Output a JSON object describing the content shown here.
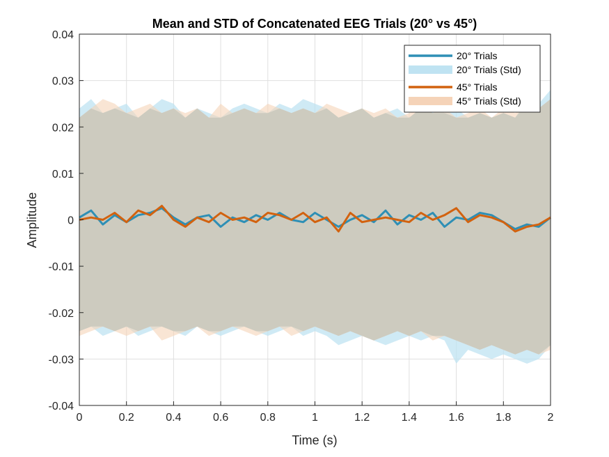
{
  "chart_data": {
    "type": "line",
    "title": "Mean and STD of Concatenated EEG Trials (20° vs 45°)",
    "xlabel": "Time (s)",
    "ylabel": "Amplitude",
    "xlim": [
      0,
      2
    ],
    "ylim": [
      -0.04,
      0.04
    ],
    "xticks": [
      0,
      0.2,
      0.4,
      0.6,
      0.8,
      1,
      1.2,
      1.4,
      1.6,
      1.8,
      2
    ],
    "xtick_labels": [
      "0",
      "0.2",
      "0.4",
      "0.6",
      "0.8",
      "1",
      "1.2",
      "1.4",
      "1.6",
      "1.8",
      "2"
    ],
    "yticks": [
      -0.04,
      -0.03,
      -0.02,
      -0.01,
      0,
      0.01,
      0.02,
      0.03,
      0.04
    ],
    "ytick_labels": [
      "-0.04",
      "-0.03",
      "-0.02",
      "-0.01",
      "0",
      "0.01",
      "0.02",
      "0.03",
      "0.04"
    ],
    "grid": true,
    "legend_position": "top-right",
    "x": [
      0,
      0.05,
      0.1,
      0.15,
      0.2,
      0.25,
      0.3,
      0.35,
      0.4,
      0.45,
      0.5,
      0.55,
      0.6,
      0.65,
      0.7,
      0.75,
      0.8,
      0.85,
      0.9,
      0.95,
      1.0,
      1.05,
      1.1,
      1.15,
      1.2,
      1.25,
      1.3,
      1.35,
      1.4,
      1.45,
      1.5,
      1.55,
      1.6,
      1.65,
      1.7,
      1.75,
      1.8,
      1.85,
      1.9,
      1.95,
      2.0
    ],
    "series": [
      {
        "name": "20° Trials",
        "color": "#2E8FB5",
        "values": [
          0.0005,
          0.002,
          -0.001,
          0.001,
          -0.0005,
          0.001,
          0.0015,
          0.0025,
          0.0005,
          -0.001,
          0.0005,
          0.001,
          -0.0015,
          0.0005,
          -0.0005,
          0.001,
          0.0,
          0.0015,
          0.0,
          -0.0005,
          0.0015,
          0.0,
          -0.0015,
          0.0,
          0.001,
          -0.0005,
          0.002,
          -0.001,
          0.001,
          0.0,
          0.0015,
          -0.0015,
          0.0005,
          0.0,
          0.0015,
          0.001,
          -0.0005,
          -0.002,
          -0.001,
          -0.0015,
          0.0005
        ]
      },
      {
        "name": "20° Trials (Std)",
        "color": "#BFE3F2",
        "upper": [
          0.024,
          0.026,
          0.023,
          0.024,
          0.025,
          0.022,
          0.024,
          0.026,
          0.025,
          0.022,
          0.024,
          0.023,
          0.022,
          0.024,
          0.025,
          0.024,
          0.023,
          0.025,
          0.024,
          0.026,
          0.025,
          0.024,
          0.022,
          0.023,
          0.024,
          0.022,
          0.023,
          0.024,
          0.022,
          0.024,
          0.025,
          0.023,
          0.024,
          0.022,
          0.023,
          0.022,
          0.023,
          0.022,
          0.026,
          0.025,
          0.028
        ],
        "lower": [
          -0.024,
          -0.023,
          -0.025,
          -0.024,
          -0.023,
          -0.025,
          -0.024,
          -0.023,
          -0.024,
          -0.025,
          -0.023,
          -0.024,
          -0.025,
          -0.024,
          -0.023,
          -0.024,
          -0.025,
          -0.024,
          -0.023,
          -0.025,
          -0.024,
          -0.025,
          -0.027,
          -0.026,
          -0.025,
          -0.026,
          -0.027,
          -0.026,
          -0.025,
          -0.026,
          -0.025,
          -0.026,
          -0.031,
          -0.028,
          -0.029,
          -0.03,
          -0.029,
          -0.03,
          -0.031,
          -0.03,
          -0.027
        ]
      },
      {
        "name": "45° Trials",
        "color": "#D2620F",
        "values": [
          0.0,
          0.0005,
          0.0,
          0.0015,
          -0.0005,
          0.002,
          0.001,
          0.003,
          0.0,
          -0.0015,
          0.0005,
          -0.0005,
          0.0015,
          0.0,
          0.0005,
          -0.0005,
          0.0015,
          0.001,
          0.0,
          0.0015,
          -0.0005,
          0.0005,
          -0.0025,
          0.0015,
          -0.0005,
          0.0,
          0.0005,
          0.0,
          -0.0005,
          0.0015,
          0.0,
          0.001,
          0.0025,
          -0.0005,
          0.001,
          0.0005,
          -0.0005,
          -0.0025,
          -0.0015,
          -0.001,
          0.0005
        ]
      },
      {
        "name": "45° Trials (Std)",
        "color": "#F5D3B8",
        "upper": [
          0.022,
          0.024,
          0.026,
          0.025,
          0.023,
          0.024,
          0.025,
          0.023,
          0.024,
          0.023,
          0.024,
          0.022,
          0.025,
          0.023,
          0.024,
          0.023,
          0.025,
          0.024,
          0.023,
          0.024,
          0.023,
          0.025,
          0.024,
          0.023,
          0.024,
          0.023,
          0.024,
          0.022,
          0.023,
          0.024,
          0.023,
          0.024,
          0.022,
          0.023,
          0.024,
          0.022,
          0.024,
          0.023,
          0.025,
          0.024,
          0.026
        ],
        "lower": [
          -0.025,
          -0.024,
          -0.023,
          -0.024,
          -0.025,
          -0.024,
          -0.023,
          -0.026,
          -0.025,
          -0.024,
          -0.023,
          -0.025,
          -0.024,
          -0.023,
          -0.024,
          -0.025,
          -0.024,
          -0.023,
          -0.025,
          -0.024,
          -0.023,
          -0.024,
          -0.025,
          -0.024,
          -0.025,
          -0.026,
          -0.025,
          -0.024,
          -0.025,
          -0.024,
          -0.026,
          -0.025,
          -0.026,
          -0.027,
          -0.028,
          -0.027,
          -0.028,
          -0.029,
          -0.028,
          -0.029,
          -0.028
        ]
      }
    ]
  }
}
